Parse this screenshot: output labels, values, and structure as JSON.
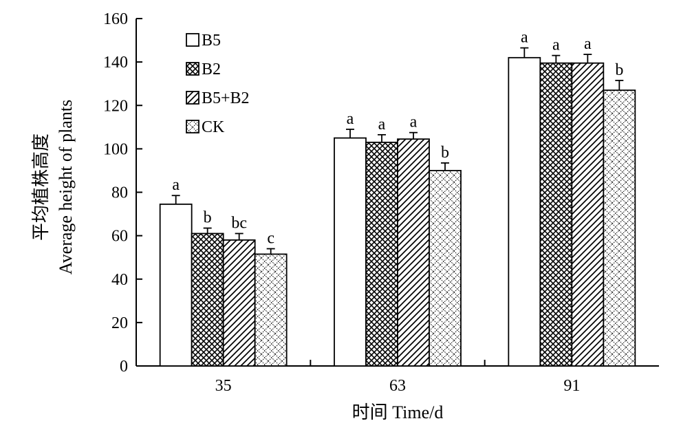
{
  "chart_data": {
    "type": "bar",
    "title": "",
    "xlabel": "时间 Time/d",
    "ylabel_cn": "平均植株高度",
    "ylabel_en": "Average height of plants",
    "categories": [
      "35",
      "63",
      "91"
    ],
    "ylim": [
      0,
      160
    ],
    "yticks": [
      0,
      20,
      40,
      60,
      80,
      100,
      120,
      140,
      160
    ],
    "grid": false,
    "legend_position": "top-left",
    "series": [
      {
        "name": "B5",
        "pattern": "white",
        "values": [
          74.5,
          105.0,
          142.0
        ],
        "errors": [
          4.0,
          4.0,
          4.5
        ],
        "labels": [
          "a",
          "a",
          "a"
        ]
      },
      {
        "name": "B2",
        "pattern": "crosshatch",
        "values": [
          61.0,
          103.0,
          139.5
        ],
        "errors": [
          2.5,
          3.5,
          3.5
        ],
        "labels": [
          "b",
          "a",
          "a"
        ]
      },
      {
        "name": "B5+B2",
        "pattern": "diagonal",
        "values": [
          58.0,
          104.5,
          139.5
        ],
        "errors": [
          3.0,
          3.0,
          4.0
        ],
        "labels": [
          "bc",
          "a",
          "a"
        ]
      },
      {
        "name": "CK",
        "pattern": "dotted-diamond",
        "values": [
          51.5,
          90.0,
          127.0
        ],
        "errors": [
          2.5,
          3.5,
          4.5
        ],
        "labels": [
          "c",
          "b",
          "b"
        ]
      }
    ]
  }
}
